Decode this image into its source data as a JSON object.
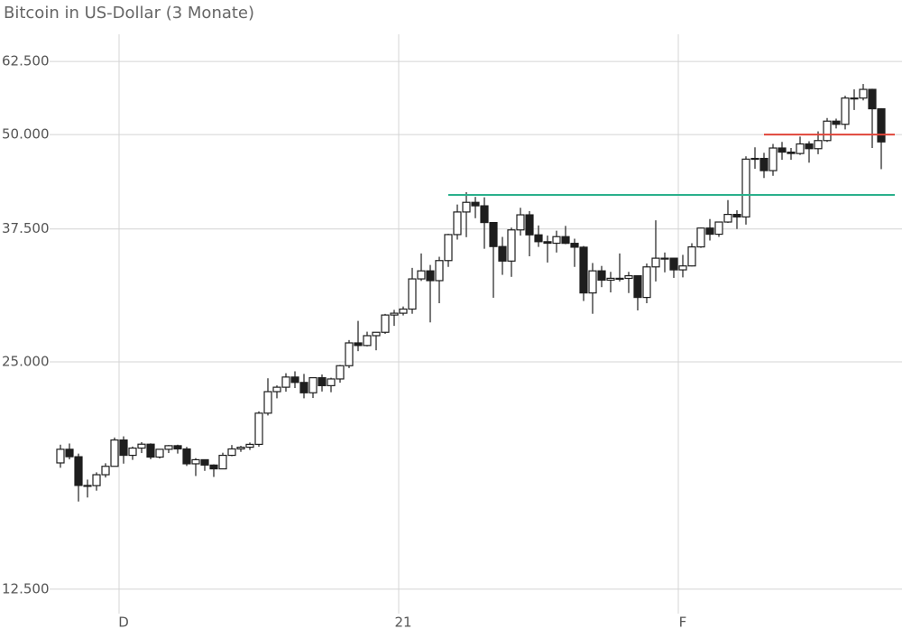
{
  "chart_data": {
    "type": "candlestick",
    "title": "Bitcoin in US-Dollar (3 Monate)",
    "log_scale": true,
    "grid": true,
    "ylim": [
      11600,
      67900
    ],
    "yticks": [
      {
        "value": 12500,
        "label": "12.500"
      },
      {
        "value": 25000,
        "label": "25.000"
      },
      {
        "value": 37500,
        "label": "37.500"
      },
      {
        "value": 50000,
        "label": "50.000"
      },
      {
        "value": 62500,
        "label": "62.500"
      }
    ],
    "up_color": "#ffffff",
    "down_color": "#1e1e1e",
    "categories": [
      null,
      null,
      null,
      null,
      null,
      null,
      null,
      "D",
      null,
      null,
      null,
      null,
      null,
      null,
      null,
      null,
      null,
      null,
      null,
      null,
      null,
      null,
      null,
      null,
      null,
      null,
      null,
      null,
      null,
      null,
      null,
      null,
      null,
      null,
      null,
      null,
      null,
      null,
      "21",
      null,
      null,
      null,
      null,
      null,
      null,
      null,
      null,
      null,
      null,
      null,
      null,
      null,
      null,
      null,
      null,
      null,
      null,
      null,
      null,
      null,
      null,
      null,
      null,
      null,
      null,
      null,
      null,
      null,
      null,
      "F",
      null,
      null,
      null,
      null,
      null,
      null,
      null,
      null,
      null,
      null,
      null,
      null,
      null,
      null,
      null,
      null,
      null,
      null,
      null,
      null,
      null,
      null
    ],
    "open": [
      18370,
      19150,
      18720,
      17150,
      17140,
      17720,
      18180,
      19700,
      18800,
      19220,
      19450,
      18700,
      19150,
      19360,
      19170,
      18320,
      18550,
      18250,
      18040,
      18800,
      19170,
      19270,
      19440,
      21380,
      22830,
      23140,
      23870,
      23480,
      22750,
      23820,
      23250,
      23730,
      24710,
      26490,
      26280,
      27080,
      27360,
      28840,
      29000,
      29370,
      32200,
      33000,
      32030,
      34050,
      36860,
      39490,
      40670,
      40240,
      38240,
      35540,
      34000,
      37390,
      39150,
      36830,
      36070,
      35900,
      36630,
      35890,
      35470,
      30850,
      33000,
      32080,
      32260,
      32250,
      32510,
      30430,
      33400,
      34300,
      34300,
      33100,
      33500,
      35500,
      37600,
      36900,
      38300,
      39200,
      38900,
      46400,
      46500,
      44800,
      48000,
      47400,
      47200,
      48600,
      47900,
      49100,
      52100,
      51600,
      55900,
      55900,
      57400,
      54100
    ],
    "high": [
      19420,
      19490,
      18900,
      17460,
      17850,
      18350,
      19850,
      19920,
      19310,
      19570,
      19500,
      19170,
      19400,
      19420,
      19290,
      18640,
      18560,
      18290,
      18950,
      19400,
      19350,
      19550,
      21500,
      23780,
      23270,
      24150,
      24290,
      24100,
      23830,
      24060,
      23820,
      24770,
      26720,
      28330,
      27410,
      27370,
      28940,
      29300,
      29600,
      33300,
      34800,
      33600,
      34450,
      36950,
      40400,
      41950,
      41350,
      41300,
      38260,
      36600,
      37650,
      40000,
      39600,
      37900,
      36750,
      37300,
      37850,
      36400,
      35600,
      33800,
      33500,
      32900,
      34800,
      32900,
      32560,
      33750,
      38500,
      34900,
      34350,
      34650,
      35900,
      37650,
      38650,
      38300,
      40950,
      39700,
      46800,
      48100,
      47300,
      48600,
      48900,
      48000,
      49700,
      49000,
      50500,
      52600,
      52500,
      56300,
      57400,
      58350,
      57500,
      54200
    ],
    "low": [
      18100,
      18570,
      16330,
      16530,
      16880,
      17570,
      18180,
      18330,
      18540,
      18930,
      18580,
      18620,
      18930,
      18900,
      18200,
      17650,
      17930,
      17600,
      18020,
      18750,
      19000,
      19110,
      19300,
      21230,
      22370,
      22830,
      23080,
      22370,
      22390,
      22840,
      22790,
      23460,
      24530,
      25830,
      26210,
      25900,
      27230,
      27900,
      28800,
      28950,
      32000,
      28200,
      29900,
      33400,
      36300,
      36570,
      38750,
      35300,
      30400,
      32600,
      32400,
      36750,
      34500,
      35500,
      33850,
      34900,
      35800,
      33400,
      30100,
      28950,
      31400,
      30900,
      31950,
      30840,
      29250,
      29900,
      31950,
      32850,
      32300,
      32350,
      33450,
      35400,
      36200,
      36600,
      38200,
      37500,
      38000,
      45050,
      43800,
      44100,
      46300,
      46300,
      47000,
      45900,
      47100,
      48900,
      50950,
      50800,
      53900,
      55500,
      48000,
      45000
    ],
    "close": [
      19150,
      18720,
      17150,
      17140,
      17720,
      18180,
      19700,
      18800,
      19220,
      19450,
      18700,
      19150,
      19360,
      19170,
      18320,
      18550,
      18250,
      18040,
      18800,
      19170,
      19270,
      19440,
      21380,
      22830,
      23140,
      23870,
      23480,
      22750,
      23820,
      23250,
      23730,
      24710,
      26490,
      26280,
      27080,
      27360,
      28840,
      29000,
      29370,
      32200,
      33000,
      32030,
      34050,
      36860,
      39490,
      40670,
      40240,
      38240,
      35540,
      34000,
      37390,
      39150,
      36830,
      36070,
      35900,
      36630,
      35890,
      35470,
      30850,
      33000,
      32080,
      32260,
      32250,
      32510,
      30430,
      33400,
      34300,
      34300,
      33100,
      33500,
      35500,
      37600,
      36900,
      38300,
      39200,
      38900,
      46400,
      46500,
      44800,
      48000,
      47400,
      47200,
      48600,
      47900,
      49100,
      52100,
      51600,
      55900,
      55900,
      57400,
      54100,
      48900
    ],
    "hlines": [
      {
        "value": 41600,
        "start": 43,
        "color": "#2bb08c"
      },
      {
        "value": 50000,
        "start": 78,
        "color": "#e0453a"
      }
    ]
  }
}
